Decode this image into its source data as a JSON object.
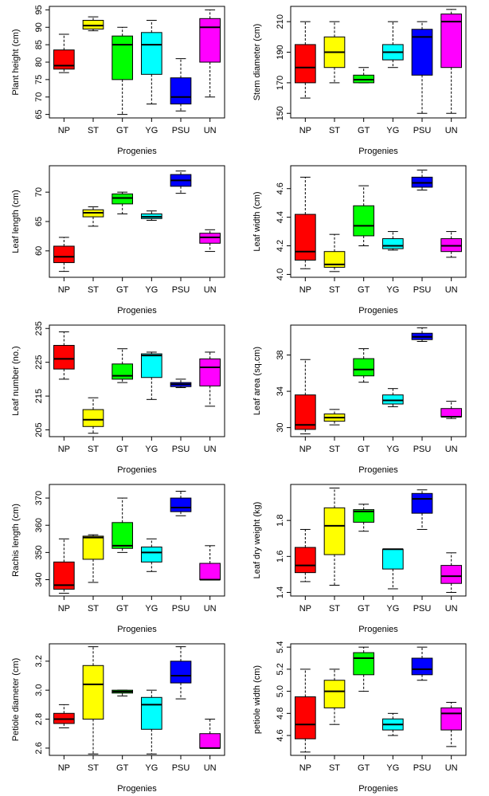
{
  "chart_data": [
    {
      "type": "box",
      "ylabel": "Plant height (cm)",
      "xlabel": "Progenies",
      "categories": [
        "NP",
        "ST",
        "GT",
        "YG",
        "PSU",
        "UN"
      ],
      "colors": [
        "#ff0000",
        "#ffff00",
        "#00ff00",
        "#00ffff",
        "#0000ff",
        "#ff00ff"
      ],
      "min": [
        77,
        89,
        65,
        68,
        66,
        70
      ],
      "q1": [
        78,
        89.5,
        75,
        76.5,
        68,
        80
      ],
      "median": [
        79,
        90.5,
        85,
        85,
        70,
        90
      ],
      "q3": [
        83.5,
        92,
        87.5,
        88.5,
        75.5,
        92.5
      ],
      "max": [
        88,
        93,
        90,
        92,
        81,
        95
      ],
      "ylim": [
        64,
        96
      ],
      "yticks": [
        65,
        70,
        75,
        80,
        85,
        90,
        95
      ]
    },
    {
      "type": "box",
      "ylabel": "Stem diameter (cm)",
      "xlabel": "Progenies",
      "categories": [
        "NP",
        "ST",
        "GT",
        "YG",
        "PSU",
        "UN"
      ],
      "colors": [
        "#ff0000",
        "#ffff00",
        "#00ff00",
        "#00ffff",
        "#0000ff",
        "#ff00ff"
      ],
      "min": [
        160,
        170,
        170,
        180,
        150,
        150
      ],
      "q1": [
        170,
        180,
        170,
        185,
        175,
        180
      ],
      "median": [
        180,
        190,
        172,
        190,
        200,
        210
      ],
      "q3": [
        195,
        200,
        175,
        195,
        205,
        215
      ],
      "max": [
        210,
        210,
        180,
        210,
        210,
        218
      ],
      "ylim": [
        147,
        220
      ],
      "yticks": [
        150,
        170,
        190,
        210
      ]
    },
    {
      "type": "box",
      "ylabel": "Leaf length (cm)",
      "xlabel": "Progenies",
      "categories": [
        "NP",
        "ST",
        "GT",
        "YG",
        "PSU",
        "UN"
      ],
      "colors": [
        "#ff0000",
        "#ffff00",
        "#00ff00",
        "#00ffff",
        "#0000ff",
        "#ff00ff"
      ],
      "min": [
        56.5,
        64.2,
        66.3,
        65.2,
        69.8,
        59.9
      ],
      "q1": [
        58,
        65.8,
        68,
        65.5,
        71,
        61.3
      ],
      "median": [
        59,
        66.5,
        69,
        65.8,
        72,
        62.3
      ],
      "q3": [
        60.8,
        67,
        69.7,
        66.3,
        73,
        63
      ],
      "max": [
        62.3,
        67.5,
        70,
        66.8,
        73.6,
        63.6
      ],
      "ylim": [
        55.5,
        74.5
      ],
      "yticks": [
        60,
        65,
        70
      ]
    },
    {
      "type": "box",
      "ylabel": "Leaf width (cm)",
      "xlabel": "Progenies",
      "categories": [
        "NP",
        "ST",
        "GT",
        "YG",
        "PSU",
        "UN"
      ],
      "colors": [
        "#ff0000",
        "#ffff00",
        "#00ff00",
        "#00ffff",
        "#0000ff",
        "#ff00ff"
      ],
      "min": [
        4.04,
        4.02,
        4.2,
        4.17,
        4.59,
        4.12
      ],
      "q1": [
        4.1,
        4.05,
        4.27,
        4.18,
        4.61,
        4.16
      ],
      "median": [
        4.16,
        4.07,
        4.34,
        4.2,
        4.64,
        4.2
      ],
      "q3": [
        4.42,
        4.16,
        4.48,
        4.25,
        4.68,
        4.25
      ],
      "max": [
        4.68,
        4.28,
        4.62,
        4.3,
        4.73,
        4.3
      ],
      "ylim": [
        3.98,
        4.76
      ],
      "yticks": [
        {
          "value": 4,
          "label": "4.0"
        },
        4.2,
        4.4,
        4.6
      ]
    },
    {
      "type": "box",
      "ylabel": "Leaf number (no.)",
      "xlabel": "Progenies",
      "categories": [
        "NP",
        "ST",
        "GT",
        "YG",
        "PSU",
        "UN"
      ],
      "colors": [
        "#ff0000",
        "#ffff00",
        "#00ff00",
        "#00ffff",
        "#0000ff",
        "#ff00ff"
      ],
      "min": [
        220,
        204,
        219,
        214,
        217.5,
        212
      ],
      "q1": [
        223,
        206,
        220,
        220.5,
        217.8,
        218
      ],
      "median": [
        226,
        208,
        221,
        227,
        218.5,
        223.5
      ],
      "q3": [
        230,
        211,
        224.5,
        227.5,
        219,
        226
      ],
      "max": [
        234,
        214.5,
        229,
        228,
        220,
        228
      ],
      "ylim": [
        203,
        236
      ],
      "yticks": [
        205,
        215,
        225,
        235
      ]
    },
    {
      "type": "box",
      "ylabel": "Leaf area (sq.cm)",
      "xlabel": "Progenies",
      "categories": [
        "NP",
        "ST",
        "GT",
        "YG",
        "PSU",
        "UN"
      ],
      "colors": [
        "#ff0000",
        "#ffff00",
        "#00ff00",
        "#00ffff",
        "#0000ff",
        "#ff00ff"
      ],
      "min": [
        29.3,
        30.3,
        35,
        32.3,
        39.5,
        31
      ],
      "q1": [
        29.8,
        30.7,
        35.7,
        32.6,
        39.7,
        31.2
      ],
      "median": [
        30.3,
        31.1,
        36.4,
        33,
        40,
        31.2
      ],
      "q3": [
        33.6,
        31.5,
        37.6,
        33.6,
        40.4,
        32.1
      ],
      "max": [
        37.5,
        32,
        38.7,
        34.3,
        41,
        32.9
      ],
      "ylim": [
        29,
        41.3
      ],
      "yticks": [
        30,
        34,
        38
      ]
    },
    {
      "type": "box",
      "ylabel": "Rachis length (cm)",
      "xlabel": "Progenies",
      "categories": [
        "NP",
        "ST",
        "GT",
        "YG",
        "PSU",
        "UN"
      ],
      "colors": [
        "#ff0000",
        "#ffff00",
        "#00ff00",
        "#00ffff",
        "#0000ff",
        "#ff00ff"
      ],
      "min": [
        335,
        339,
        350,
        343,
        363.5,
        340
      ],
      "q1": [
        336.5,
        347.5,
        351.5,
        346.5,
        365,
        340
      ],
      "median": [
        338,
        355.5,
        352.5,
        350,
        366.5,
        340
      ],
      "q3": [
        346.5,
        356,
        361,
        352,
        370,
        346
      ],
      "max": [
        355,
        356.5,
        370,
        355,
        372.5,
        352.5
      ],
      "ylim": [
        334,
        375
      ],
      "yticks": [
        340,
        350,
        360,
        370
      ]
    },
    {
      "type": "box",
      "ylabel": "Leaf dry weight (kg)",
      "xlabel": "Progenies",
      "categories": [
        "NP",
        "ST",
        "GT",
        "YG",
        "PSU",
        "UN"
      ],
      "colors": [
        "#ff0000",
        "#ffff00",
        "#00ff00",
        "#00ffff",
        "#0000ff",
        "#ff00ff"
      ],
      "min": [
        1.46,
        1.44,
        1.74,
        1.42,
        1.75,
        1.4
      ],
      "q1": [
        1.51,
        1.61,
        1.79,
        1.53,
        1.84,
        1.45
      ],
      "median": [
        1.55,
        1.77,
        1.85,
        1.64,
        1.92,
        1.49
      ],
      "q3": [
        1.65,
        1.87,
        1.86,
        1.64,
        1.95,
        1.55
      ],
      "max": [
        1.75,
        1.98,
        1.89,
        1.64,
        1.97,
        1.62
      ],
      "ylim": [
        1.38,
        2.0
      ],
      "yticks": [
        1.4,
        1.6,
        1.8
      ]
    },
    {
      "type": "box",
      "ylabel": "Petiole diameter (cm)",
      "xlabel": "Progenies",
      "categories": [
        "NP",
        "ST",
        "GT",
        "YG",
        "PSU",
        "UN"
      ],
      "colors": [
        "#ff0000",
        "#ffff00",
        "#00ff00",
        "#00ffff",
        "#0000ff",
        "#ff00ff"
      ],
      "min": [
        2.74,
        2.56,
        2.96,
        2.56,
        2.94,
        2.6
      ],
      "q1": [
        2.77,
        2.8,
        2.98,
        2.73,
        3.05,
        2.6
      ],
      "median": [
        2.8,
        3.04,
        2.99,
        2.9,
        3.1,
        2.6
      ],
      "q3": [
        2.84,
        3.17,
        3.0,
        2.95,
        3.2,
        2.7
      ],
      "max": [
        2.9,
        3.3,
        3.0,
        3.0,
        3.3,
        2.8
      ],
      "ylim": [
        2.55,
        3.32
      ],
      "yticks": [
        2.6,
        2.8,
        {
          "value": 3,
          "label": "3.0"
        },
        3.2
      ]
    },
    {
      "type": "box",
      "ylabel": "petiole width (cm)",
      "xlabel": "Progenies",
      "categories": [
        "NP",
        "ST",
        "GT",
        "YG",
        "PSU",
        "UN"
      ],
      "colors": [
        "#ff0000",
        "#ffff00",
        "#00ff00",
        "#00ffff",
        "#0000ff",
        "#ff00ff"
      ],
      "min": [
        4.45,
        4.7,
        5.0,
        4.6,
        5.1,
        4.5
      ],
      "q1": [
        4.57,
        4.85,
        5.15,
        4.65,
        5.15,
        4.65
      ],
      "median": [
        4.7,
        5.0,
        5.3,
        4.7,
        5.2,
        4.8
      ],
      "q3": [
        4.95,
        5.1,
        5.35,
        4.75,
        5.3,
        4.85
      ],
      "max": [
        5.2,
        5.2,
        5.4,
        4.8,
        5.4,
        4.9
      ],
      "ylim": [
        4.42,
        5.43
      ],
      "yticks": [
        4.6,
        4.8,
        {
          "value": 5,
          "label": "5.0"
        },
        5.2,
        5.4
      ]
    }
  ]
}
